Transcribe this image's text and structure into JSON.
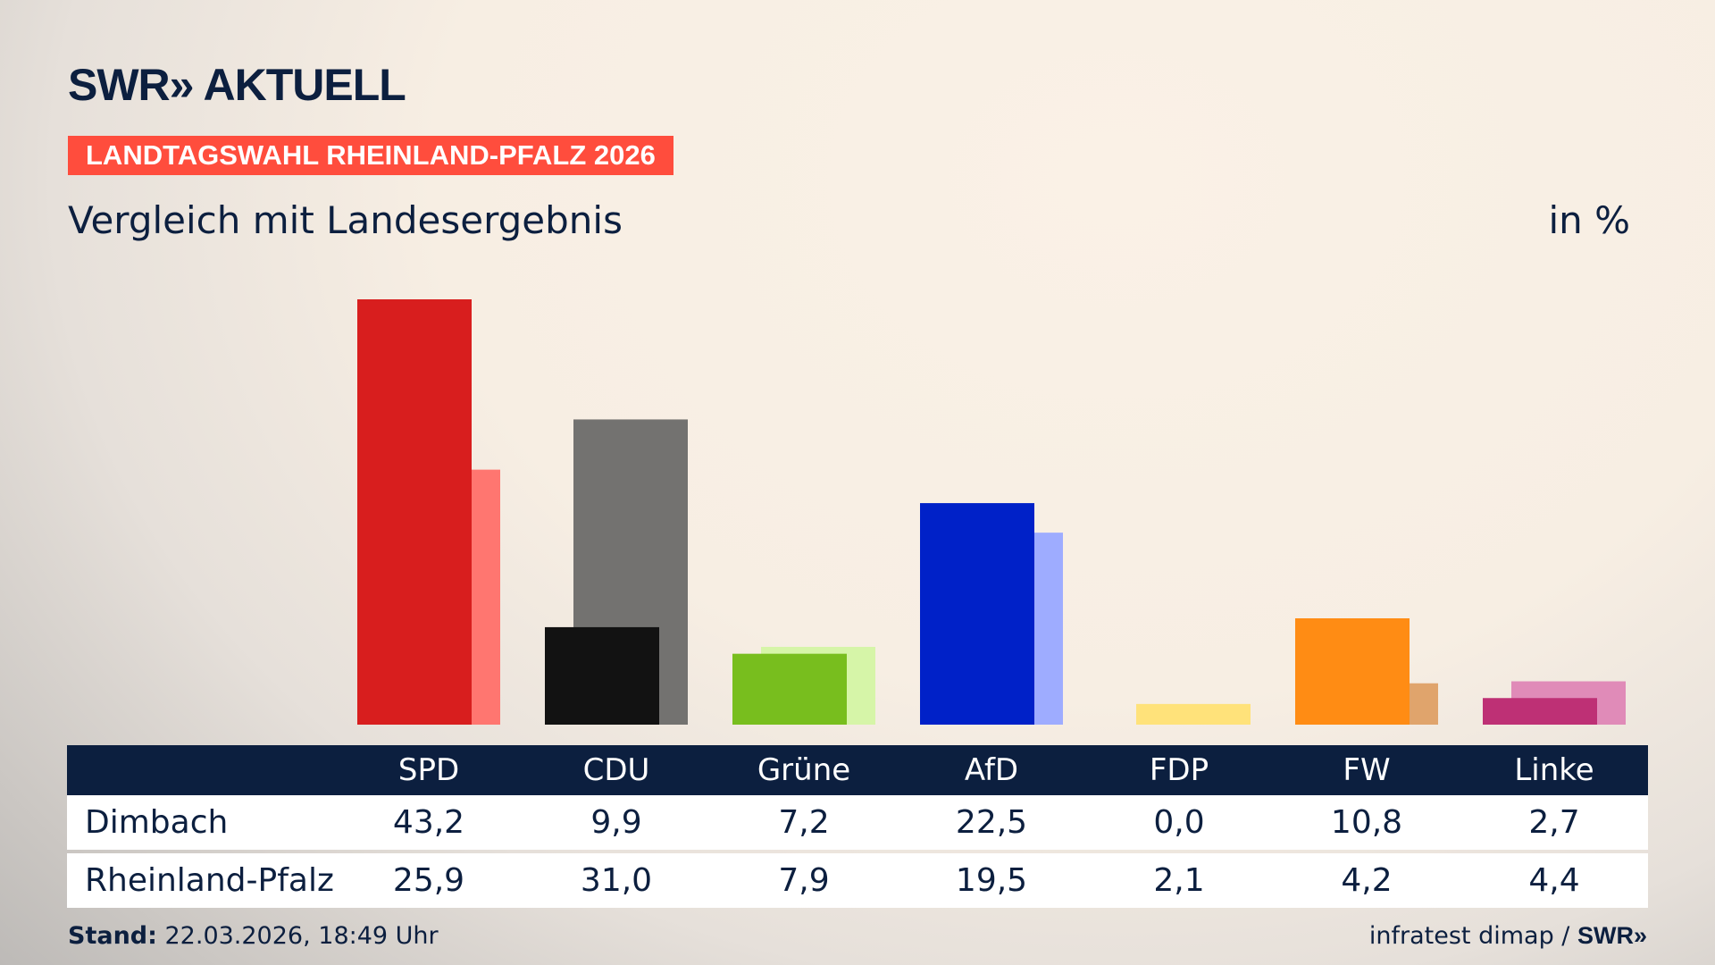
{
  "header": {
    "logo": "SWR» AKTUELL",
    "banner": "LANDTAGSWAHL RHEINLAND-PFALZ 2026",
    "subtitle": "Vergleich mit Landesergebnis",
    "unit": "in %"
  },
  "chart_data": {
    "type": "bar",
    "categories": [
      "SPD",
      "CDU",
      "Grüne",
      "AfD",
      "FDP",
      "FW",
      "Linke"
    ],
    "series": [
      {
        "name": "Dimbach",
        "values": [
          43.2,
          9.9,
          7.2,
          22.5,
          0.0,
          10.8,
          2.7
        ],
        "colors": [
          "#d81e1e",
          "#121212",
          "#78be1e",
          "#0021c8",
          "#ffe070",
          "#ff8c14",
          "#be3075"
        ]
      },
      {
        "name": "Rheinland-Pfalz",
        "values": [
          25.9,
          31.0,
          7.9,
          19.5,
          2.1,
          4.2,
          4.4
        ],
        "colors": [
          "#ff7670",
          "#737270",
          "#d6f5a8",
          "#9eacff",
          "#ffe27a",
          "#e0a46c",
          "#e08bb8"
        ]
      }
    ],
    "value_labels": {
      "Dimbach": [
        "43,2",
        "9,9",
        "7,2",
        "22,5",
        "0,0",
        "10,8",
        "2,7"
      ],
      "Rheinland-Pfalz": [
        "25,9",
        "31,0",
        "7,9",
        "19,5",
        "2,1",
        "4,2",
        "4,4"
      ]
    },
    "ylim": [
      0,
      45
    ],
    "grid": false
  },
  "footer": {
    "stand_label": "Stand:",
    "stand_value": " 22.03.2026, 18:49 Uhr",
    "source": "infratest dimap / ",
    "source_logo": "SWR»"
  }
}
